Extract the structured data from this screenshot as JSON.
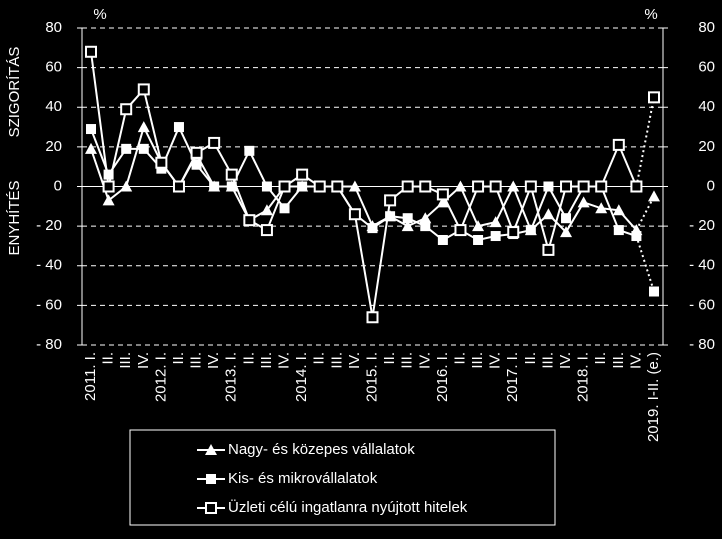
{
  "chart_data": {
    "type": "line",
    "left_label_top": "SZIGORÍTÁS",
    "left_label_bottom": "ENYHÍTÉS",
    "y_unit": "%",
    "categories": [
      "2011. I.",
      "II.",
      "III.",
      "IV.",
      "2012. I.",
      "II.",
      "III.",
      "IV.",
      "2013. I.",
      "II.",
      "III.",
      "IV.",
      "2014. I.",
      "II.",
      "III.",
      "IV.",
      "2015. I.",
      "II.",
      "III.",
      "IV.",
      "2016. I.",
      "II.",
      "III.",
      "IV.",
      "2017. I.",
      "II.",
      "III.",
      "IV.",
      "2018. I.",
      "II.",
      "III.",
      "IV.",
      "2019. I-II. (e.)"
    ],
    "series": [
      {
        "name": "Nagy- és közepes vállalatok",
        "marker": "triangle",
        "color": "#ffffff",
        "values": [
          19,
          -7,
          0,
          30,
          12,
          0,
          16,
          0,
          0,
          -17,
          -12,
          0,
          0,
          0,
          0,
          0,
          -20,
          -15,
          -20,
          -16,
          -8,
          0,
          -20,
          -18,
          0,
          -22,
          -14,
          -23,
          -8,
          -11,
          -12,
          -22,
          -5
        ]
      },
      {
        "name": "Kis- és mikrovállalatok",
        "marker": "square",
        "color": "#ffffff",
        "values": [
          29,
          6,
          19,
          19,
          9,
          30,
          11,
          0,
          0,
          18,
          0,
          -11,
          0,
          0,
          0,
          -14,
          -21,
          -15,
          -16,
          -20,
          -27,
          -22,
          -27,
          -25,
          -24,
          -22,
          0,
          -16,
          0,
          0,
          -22,
          -25,
          -53
        ]
      },
      {
        "name": "Üzleti célú ingatlanra nyújtott hitelek",
        "marker": "hollow-square",
        "color": "#ffffff",
        "values": [
          68,
          0,
          39,
          49,
          12,
          0,
          17,
          22,
          6,
          -17,
          -22,
          0,
          6,
          0,
          0,
          -14,
          -66,
          -7,
          0,
          0,
          -4,
          -22,
          0,
          0,
          -23,
          0,
          -32,
          0,
          0,
          0,
          21,
          0,
          45
        ]
      }
    ],
    "last_segment_dotted": true,
    "ylim": [
      -80,
      80
    ],
    "yticks": [
      {
        "value": -80,
        "label": "- 80"
      },
      {
        "value": -60,
        "label": "- 60"
      },
      {
        "value": -40,
        "label": "- 40"
      },
      {
        "value": -20,
        "label": "- 20"
      },
      0,
      20,
      40,
      60,
      80
    ],
    "grid": true
  }
}
